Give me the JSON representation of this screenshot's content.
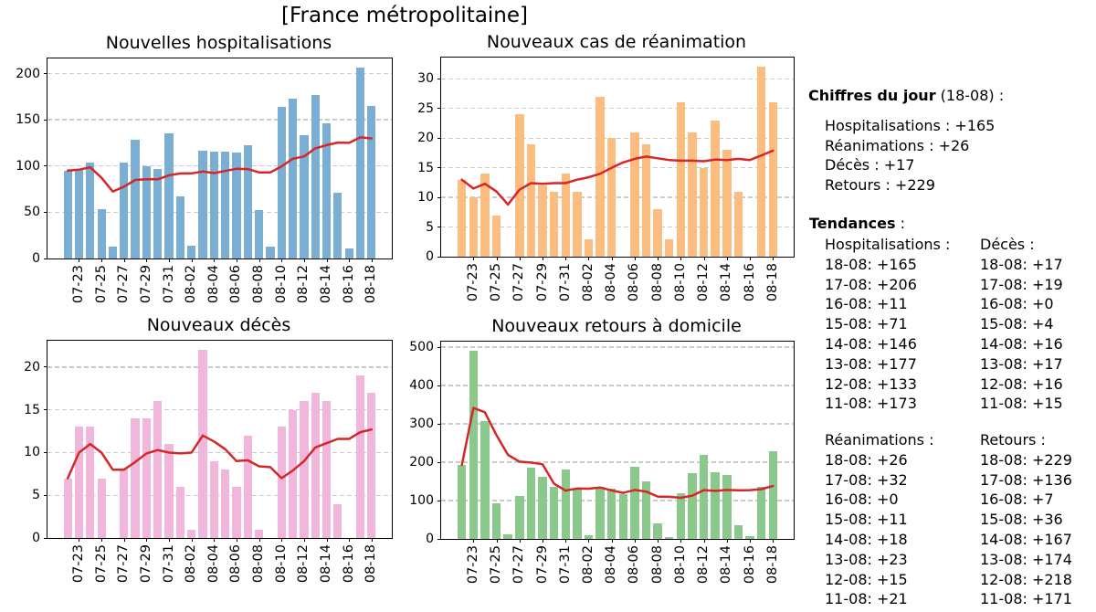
{
  "figure_title": "[France métropolitaine]",
  "colors": {
    "ma_line": "#d62728",
    "grid": "#cbcbcb",
    "axis": "#000000"
  },
  "panel": {
    "chiffres_bold": "Chiffres du jour",
    "chiffres_rest": " (18-08) :",
    "chiffres_lines": [
      "Hospitalisations : +165",
      "Réanimations : +26",
      "Décès : +17",
      "Retours : +229"
    ],
    "tendances_bold": "Tendances",
    "tendances_rest": " :",
    "tendances_groups": [
      {
        "label": "Hospitalisations :",
        "rows": [
          "18-08: +165",
          "17-08: +206",
          "16-08: +11",
          "15-08: +71",
          "14-08: +146",
          "13-08: +177",
          "12-08: +133",
          "11-08: +173"
        ]
      },
      {
        "label": "Décès :",
        "rows": [
          "18-08: +17",
          "17-08: +19",
          "16-08: +0",
          "15-08: +4",
          "14-08: +16",
          "13-08: +17",
          "12-08: +16",
          "11-08: +15"
        ]
      },
      {
        "label": "Réanimations :",
        "rows": [
          "18-08: +26",
          "17-08: +32",
          "16-08: +0",
          "15-08: +11",
          "14-08: +18",
          "13-08: +23",
          "12-08: +15",
          "11-08: +21"
        ]
      },
      {
        "label": "Retours :",
        "rows": [
          "18-08: +229",
          "17-08: +136",
          "16-08: +7",
          "15-08: +36",
          "14-08: +167",
          "13-08: +174",
          "12-08: +218",
          "11-08: +171"
        ]
      }
    ]
  },
  "chart_data": [
    {
      "type": "bar",
      "title": "Nouvelles hospitalisations",
      "bar_color": "#7aaed3",
      "line_color": "#d62728",
      "legend_position": "none",
      "grid": true,
      "dates": [
        "07-22",
        "07-23",
        "07-24",
        "07-25",
        "07-26",
        "07-27",
        "07-28",
        "07-29",
        "07-30",
        "07-31",
        "08-01",
        "08-02",
        "08-03",
        "08-04",
        "08-05",
        "08-06",
        "08-07",
        "08-08",
        "08-09",
        "08-10",
        "08-11",
        "08-12",
        "08-13",
        "08-14",
        "08-15",
        "08-16",
        "08-17",
        "08-18"
      ],
      "values": [
        95,
        97,
        104,
        53,
        13,
        104,
        128,
        100,
        97,
        135,
        67,
        14,
        117,
        116,
        116,
        115,
        122,
        52,
        13,
        164,
        173,
        133,
        177,
        146,
        71,
        11,
        206,
        165
      ],
      "ma7": [
        95.0,
        96.0,
        98.7,
        87.3,
        72.4,
        77.7,
        84.9,
        85.6,
        85.6,
        90.0,
        92.0,
        92.1,
        94.0,
        92.3,
        94.6,
        97.1,
        96.7,
        93.1,
        93.0,
        99.7,
        107.9,
        110.3,
        119.1,
        122.6,
        125.3,
        125.0,
        131.0,
        129.9
      ],
      "yticks": [
        0,
        50,
        100,
        150,
        200
      ],
      "ylim": [
        0,
        216.3
      ],
      "xtick_labels": [
        "07-23",
        "07-25",
        "07-27",
        "07-29",
        "07-31",
        "08-02",
        "08-04",
        "08-06",
        "08-08",
        "08-10",
        "08-12",
        "08-14",
        "08-16",
        "08-18"
      ]
    },
    {
      "type": "bar",
      "title": "Nouveaux cas de réanimation",
      "bar_color": "#fcbd80",
      "line_color": "#d62728",
      "legend_position": "none",
      "grid": true,
      "dates": [
        "07-22",
        "07-23",
        "07-24",
        "07-25",
        "07-26",
        "07-27",
        "07-28",
        "07-29",
        "07-30",
        "07-31",
        "08-01",
        "08-02",
        "08-03",
        "08-04",
        "08-05",
        "08-06",
        "08-07",
        "08-08",
        "08-09",
        "08-10",
        "08-11",
        "08-12",
        "08-13",
        "08-14",
        "08-15",
        "08-16",
        "08-17",
        "08-18"
      ],
      "values": [
        13,
        10,
        14,
        7,
        0,
        24,
        19,
        12,
        11,
        14,
        11,
        3,
        27,
        20,
        0,
        21,
        19,
        8,
        3,
        26,
        21,
        15,
        23,
        18,
        11,
        0,
        32,
        26
      ],
      "ma7": [
        13.0,
        11.5,
        12.3,
        11.0,
        8.8,
        11.3,
        12.4,
        12.3,
        12.4,
        12.4,
        13.0,
        13.4,
        14.0,
        15.0,
        15.9,
        16.5,
        16.9,
        16.6,
        16.3,
        16.2,
        16.2,
        16.1,
        16.4,
        16.3,
        16.5,
        16.3,
        17.1,
        17.9
      ],
      "yticks": [
        0,
        5,
        10,
        15,
        20,
        25,
        30
      ],
      "ylim": [
        0,
        33.6
      ],
      "xtick_labels": [
        "07-23",
        "07-25",
        "07-27",
        "07-29",
        "07-31",
        "08-02",
        "08-04",
        "08-06",
        "08-08",
        "08-10",
        "08-12",
        "08-14",
        "08-16",
        "08-18"
      ]
    },
    {
      "type": "bar",
      "title": "Nouveaux décès",
      "bar_color": "#f1b6db",
      "line_color": "#d62728",
      "legend_position": "none",
      "grid": true,
      "dates": [
        "07-22",
        "07-23",
        "07-24",
        "07-25",
        "07-26",
        "07-27",
        "07-28",
        "07-29",
        "07-30",
        "07-31",
        "08-01",
        "08-02",
        "08-03",
        "08-04",
        "08-05",
        "08-06",
        "08-07",
        "08-08",
        "08-09",
        "08-10",
        "08-11",
        "08-12",
        "08-13",
        "08-14",
        "08-15",
        "08-16",
        "08-17",
        "08-18"
      ],
      "values": [
        7,
        13,
        13,
        7,
        0,
        8,
        14,
        14,
        16,
        11,
        6,
        1,
        22,
        9,
        8,
        6,
        12,
        1,
        0,
        13,
        15,
        16,
        17,
        16,
        4,
        0,
        19,
        17
      ],
      "ma7": [
        7.0,
        10.0,
        11.0,
        10.0,
        8.0,
        8.0,
        8.9,
        9.9,
        10.3,
        10.0,
        9.9,
        10.0,
        12.0,
        11.3,
        10.4,
        9.0,
        9.1,
        8.4,
        8.3,
        7.0,
        7.9,
        9.0,
        10.6,
        11.1,
        11.6,
        11.6,
        12.4,
        12.7
      ],
      "yticks": [
        0,
        5,
        10,
        15,
        20
      ],
      "ylim": [
        0,
        23.1
      ],
      "xtick_labels": [
        "07-23",
        "07-25",
        "07-27",
        "07-29",
        "07-31",
        "08-02",
        "08-04",
        "08-06",
        "08-08",
        "08-10",
        "08-12",
        "08-14",
        "08-16",
        "08-18"
      ]
    },
    {
      "type": "bar",
      "title": "Nouveaux retours à domicile",
      "bar_color": "#8bc88b",
      "line_color": "#d62728",
      "legend_position": "none",
      "grid": true,
      "dates": [
        "07-22",
        "07-23",
        "07-24",
        "07-25",
        "07-26",
        "07-27",
        "07-28",
        "07-29",
        "07-30",
        "07-31",
        "08-01",
        "08-02",
        "08-03",
        "08-04",
        "08-05",
        "08-06",
        "08-07",
        "08-08",
        "08-09",
        "08-10",
        "08-11",
        "08-12",
        "08-13",
        "08-14",
        "08-15",
        "08-16",
        "08-17",
        "08-18"
      ],
      "values": [
        193,
        490,
        308,
        92,
        13,
        113,
        185,
        163,
        135,
        181,
        130,
        10,
        135,
        132,
        117,
        188,
        151,
        41,
        4,
        118,
        171,
        218,
        174,
        167,
        36,
        7,
        136,
        229
      ],
      "ma7": [
        193.0,
        341.5,
        330.3,
        270.8,
        219.2,
        201.5,
        199.1,
        194.9,
        144.1,
        126.0,
        131.4,
        131.0,
        134.1,
        126.6,
        120.0,
        127.6,
        123.3,
        110.6,
        109.7,
        107.3,
        112.9,
        127.3,
        125.3,
        127.6,
        126.9,
        127.3,
        129.9,
        138.1
      ],
      "yticks": [
        0,
        100,
        200,
        300,
        400,
        500
      ],
      "ylim": [
        0,
        514.5
      ],
      "xtick_labels": [
        "07-23",
        "07-25",
        "07-27",
        "07-29",
        "07-31",
        "08-02",
        "08-04",
        "08-06",
        "08-08",
        "08-10",
        "08-12",
        "08-14",
        "08-16",
        "08-18"
      ]
    }
  ]
}
